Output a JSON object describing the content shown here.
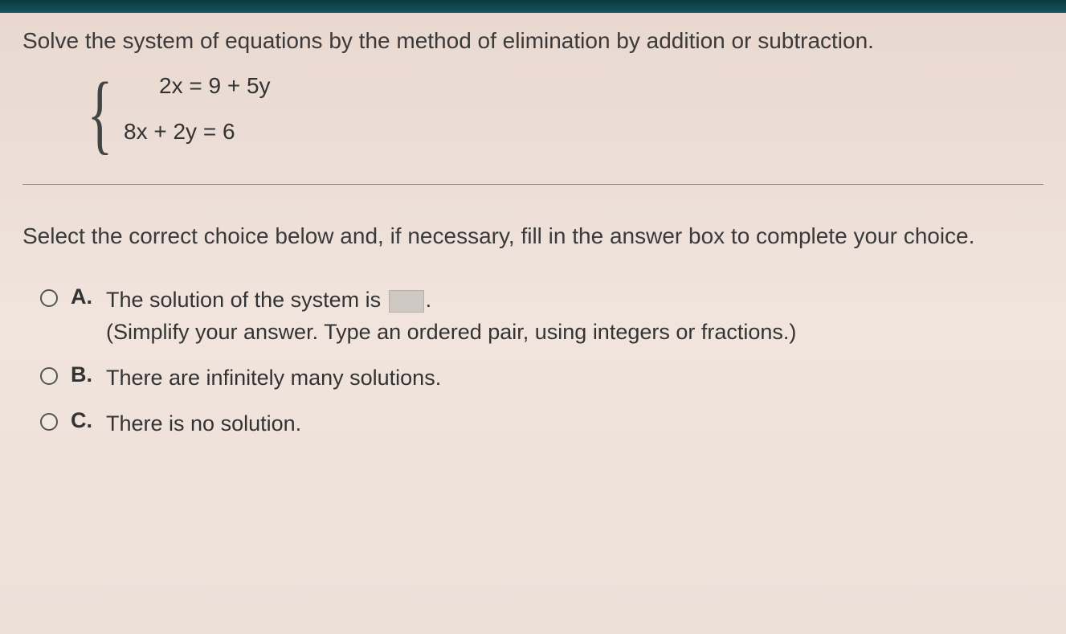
{
  "colors": {
    "top_bar": "#14505a",
    "page_bg_top": "#e8d8d0",
    "page_bg_bottom": "#ede0d9",
    "text_primary": "#3a3a3a",
    "divider": "#9a8e88",
    "radio_border": "#555555",
    "answer_box_bg": "#cfc7c2",
    "answer_box_border": "#b8afa9"
  },
  "typography": {
    "body_font": "Arial",
    "body_size_pt": 21,
    "brace_font": "Times New Roman"
  },
  "question": {
    "prompt": "Solve the system of equations by the method of elimination by addition or subtraction.",
    "equations": {
      "eq1": "2x = 9 + 5y",
      "eq2": "8x + 2y = 6"
    },
    "instruction": "Select the correct choice below and, if necessary, fill in the answer box to complete your choice."
  },
  "choices": {
    "a": {
      "letter": "A.",
      "text_before": "The solution of the system is ",
      "text_after": ".",
      "note": "(Simplify your answer. Type an ordered pair, using integers or fractions.)",
      "answer_value": ""
    },
    "b": {
      "letter": "B.",
      "text": "There are infinitely many solutions."
    },
    "c": {
      "letter": "C.",
      "text": "There is no solution."
    }
  }
}
